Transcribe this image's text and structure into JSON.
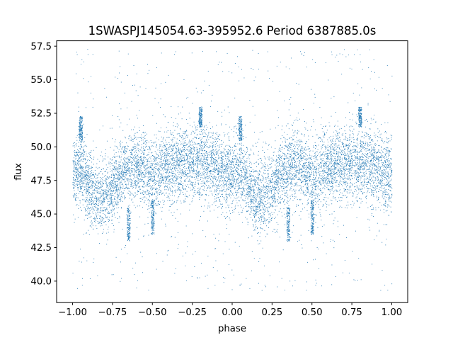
{
  "chart_data": {
    "type": "scatter",
    "title": "1SWASPJ145054.63-395952.6 Period 6387885.0s",
    "xlabel": "phase",
    "ylabel": "flux",
    "xlim": [
      -1.1,
      1.1
    ],
    "ylim": [
      38.4,
      57.9
    ],
    "xticks": [
      -1.0,
      -0.75,
      -0.5,
      -0.25,
      0.0,
      0.25,
      0.5,
      0.75,
      1.0
    ],
    "xtick_labels": [
      "−1.00",
      "−0.75",
      "−0.50",
      "−0.25",
      "0.00",
      "0.25",
      "0.50",
      "0.75",
      "1.00"
    ],
    "yticks": [
      40.0,
      42.5,
      45.0,
      47.5,
      50.0,
      52.5,
      55.0,
      57.5
    ],
    "ytick_labels": [
      "40.0",
      "42.5",
      "45.0",
      "47.5",
      "50.0",
      "52.5",
      "55.0",
      "57.5"
    ],
    "grid": false,
    "legend": "none",
    "series": [
      {
        "color": "#1f77b4",
        "marker": "point",
        "x_range": [
          -1.0,
          1.0
        ],
        "y_range": [
          39.3,
          57.3
        ],
        "profile": [
          {
            "x": -1.0,
            "y": 48.0
          },
          {
            "x": -0.95,
            "y": 48.5
          },
          {
            "x": -0.9,
            "y": 47.0
          },
          {
            "x": -0.85,
            "y": 46.0
          },
          {
            "x": -0.8,
            "y": 46.5
          },
          {
            "x": -0.75,
            "y": 47.0
          },
          {
            "x": -0.7,
            "y": 48.0
          },
          {
            "x": -0.65,
            "y": 48.5
          },
          {
            "x": -0.6,
            "y": 48.7
          },
          {
            "x": -0.55,
            "y": 48.5
          },
          {
            "x": -0.5,
            "y": 47.5
          },
          {
            "x": -0.45,
            "y": 48.2
          },
          {
            "x": -0.4,
            "y": 48.5
          },
          {
            "x": -0.35,
            "y": 48.7
          },
          {
            "x": -0.3,
            "y": 48.7
          },
          {
            "x": -0.25,
            "y": 48.8
          },
          {
            "x": -0.2,
            "y": 49.0
          },
          {
            "x": -0.15,
            "y": 48.5
          },
          {
            "x": -0.1,
            "y": 48.5
          },
          {
            "x": -0.05,
            "y": 48.0
          },
          {
            "x": 0.0,
            "y": 48.0
          },
          {
            "x": 0.05,
            "y": 48.5
          },
          {
            "x": 0.1,
            "y": 47.0
          },
          {
            "x": 0.15,
            "y": 46.0
          },
          {
            "x": 0.2,
            "y": 46.5
          },
          {
            "x": 0.25,
            "y": 47.0
          },
          {
            "x": 0.3,
            "y": 48.0
          },
          {
            "x": 0.35,
            "y": 48.5
          },
          {
            "x": 0.4,
            "y": 48.7
          },
          {
            "x": 0.45,
            "y": 48.5
          },
          {
            "x": 0.5,
            "y": 47.5
          },
          {
            "x": 0.55,
            "y": 48.2
          },
          {
            "x": 0.6,
            "y": 48.5
          },
          {
            "x": 0.65,
            "y": 48.7
          },
          {
            "x": 0.7,
            "y": 48.7
          },
          {
            "x": 0.75,
            "y": 48.8
          },
          {
            "x": 0.8,
            "y": 49.0
          },
          {
            "x": 0.85,
            "y": 48.5
          },
          {
            "x": 0.9,
            "y": 48.5
          },
          {
            "x": 0.95,
            "y": 48.0
          },
          {
            "x": 1.0,
            "y": 48.0
          }
        ],
        "features": [
          {
            "x": -0.95,
            "y_from": 50.5,
            "y_to": 52.3
          },
          {
            "x": 0.05,
            "y_from": 50.5,
            "y_to": 52.3
          },
          {
            "x": -0.5,
            "y_from": 43.5,
            "y_to": 46.0
          },
          {
            "x": 0.5,
            "y_from": 43.5,
            "y_to": 46.0
          },
          {
            "x": -0.65,
            "y_from": 43.0,
            "y_to": 45.5
          },
          {
            "x": 0.35,
            "y_from": 43.0,
            "y_to": 45.5
          },
          {
            "x": -0.2,
            "y_from": 51.5,
            "y_to": 53.0
          },
          {
            "x": 0.8,
            "y_from": 51.5,
            "y_to": 53.0
          }
        ]
      }
    ]
  }
}
